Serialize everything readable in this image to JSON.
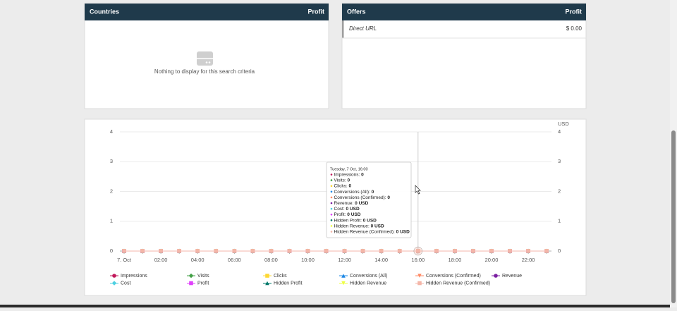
{
  "countries_panel": {
    "title": "Countries",
    "column": "Profit",
    "empty_message": "Nothing to display for this search criteria"
  },
  "offers_panel": {
    "title": "Offers",
    "column": "Profit",
    "rows": [
      [
        "Direct URL",
        "$ 0.00"
      ]
    ]
  },
  "chart_data": {
    "type": "line",
    "categories": [
      "7. Oct",
      null,
      "02:00",
      null,
      "04:00",
      null,
      "06:00",
      null,
      "08:00",
      null,
      "10:00",
      null,
      "12:00",
      null,
      "14:00",
      null,
      "16:00",
      null,
      "18:00",
      null,
      "20:00",
      null,
      "22:00",
      null
    ],
    "ylim": [
      0,
      4
    ],
    "yticks": [
      0,
      1,
      2,
      3,
      4
    ],
    "y2label": "USD",
    "y2lim": [
      0,
      4
    ],
    "y2ticks": [
      0,
      1,
      2,
      3,
      4
    ],
    "grid": true,
    "series": [
      {
        "name": "Impressions",
        "color": "#c2185b",
        "marker": "circle",
        "values": [
          0,
          0,
          0,
          0,
          0,
          0,
          0,
          0,
          0,
          0,
          0,
          0,
          0,
          0,
          0,
          0,
          0,
          0,
          0,
          0,
          0,
          0,
          0,
          0
        ]
      },
      {
        "name": "Visits",
        "color": "#43a047",
        "marker": "diamond",
        "values": [
          0,
          0,
          0,
          0,
          0,
          0,
          0,
          0,
          0,
          0,
          0,
          0,
          0,
          0,
          0,
          0,
          0,
          0,
          0,
          0,
          0,
          0,
          0,
          0
        ]
      },
      {
        "name": "Clicks",
        "color": "#fdd835",
        "marker": "square",
        "values": [
          0,
          0,
          0,
          0,
          0,
          0,
          0,
          0,
          0,
          0,
          0,
          0,
          0,
          0,
          0,
          0,
          0,
          0,
          0,
          0,
          0,
          0,
          0,
          0
        ]
      },
      {
        "name": "Conversions (All)",
        "color": "#1e88e5",
        "marker": "triangle",
        "values": [
          0,
          0,
          0,
          0,
          0,
          0,
          0,
          0,
          0,
          0,
          0,
          0,
          0,
          0,
          0,
          0,
          0,
          0,
          0,
          0,
          0,
          0,
          0,
          0
        ]
      },
      {
        "name": "Conversions (Confirmed)",
        "color": "#ff8a65",
        "marker": "triangle-down",
        "values": [
          0,
          0,
          0,
          0,
          0,
          0,
          0,
          0,
          0,
          0,
          0,
          0,
          0,
          0,
          0,
          0,
          0,
          0,
          0,
          0,
          0,
          0,
          0,
          0
        ]
      },
      {
        "name": "Revenue",
        "color": "#7b1fa2",
        "marker": "circle",
        "axis": "y2",
        "values": [
          0,
          0,
          0,
          0,
          0,
          0,
          0,
          0,
          0,
          0,
          0,
          0,
          0,
          0,
          0,
          0,
          0,
          0,
          0,
          0,
          0,
          0,
          0,
          0
        ]
      },
      {
        "name": "Cost",
        "color": "#4dd0e1",
        "marker": "diamond",
        "axis": "y2",
        "values": [
          0,
          0,
          0,
          0,
          0,
          0,
          0,
          0,
          0,
          0,
          0,
          0,
          0,
          0,
          0,
          0,
          0,
          0,
          0,
          0,
          0,
          0,
          0,
          0
        ]
      },
      {
        "name": "Profit",
        "color": "#e040fb",
        "marker": "square",
        "axis": "y2",
        "values": [
          0,
          0,
          0,
          0,
          0,
          0,
          0,
          0,
          0,
          0,
          0,
          0,
          0,
          0,
          0,
          0,
          0,
          0,
          0,
          0,
          0,
          0,
          0,
          0
        ]
      },
      {
        "name": "Hidden Profit",
        "color": "#00796b",
        "marker": "triangle",
        "axis": "y2",
        "values": [
          0,
          0,
          0,
          0,
          0,
          0,
          0,
          0,
          0,
          0,
          0,
          0,
          0,
          0,
          0,
          0,
          0,
          0,
          0,
          0,
          0,
          0,
          0,
          0
        ]
      },
      {
        "name": "Hidden Revenue",
        "color": "#eeff41",
        "marker": "triangle-down",
        "axis": "y2",
        "values": [
          0,
          0,
          0,
          0,
          0,
          0,
          0,
          0,
          0,
          0,
          0,
          0,
          0,
          0,
          0,
          0,
          0,
          0,
          0,
          0,
          0,
          0,
          0,
          0
        ]
      },
      {
        "name": "Hidden Revenue (Confirmed)",
        "color": "#f4b6a8",
        "marker": "square",
        "axis": "y2",
        "values": [
          0,
          0,
          0,
          0,
          0,
          0,
          0,
          0,
          0,
          0,
          0,
          0,
          0,
          0,
          0,
          0,
          0,
          0,
          0,
          0,
          0,
          0,
          0,
          0
        ]
      }
    ]
  },
  "tooltip": {
    "title": "Tuesday, 7 Oct, 16:00",
    "value_labels": [
      "0",
      "0",
      "0",
      "0",
      "0",
      "0 USD",
      "0 USD",
      "0 USD",
      "0 USD",
      "0 USD",
      "0 USD"
    ]
  }
}
